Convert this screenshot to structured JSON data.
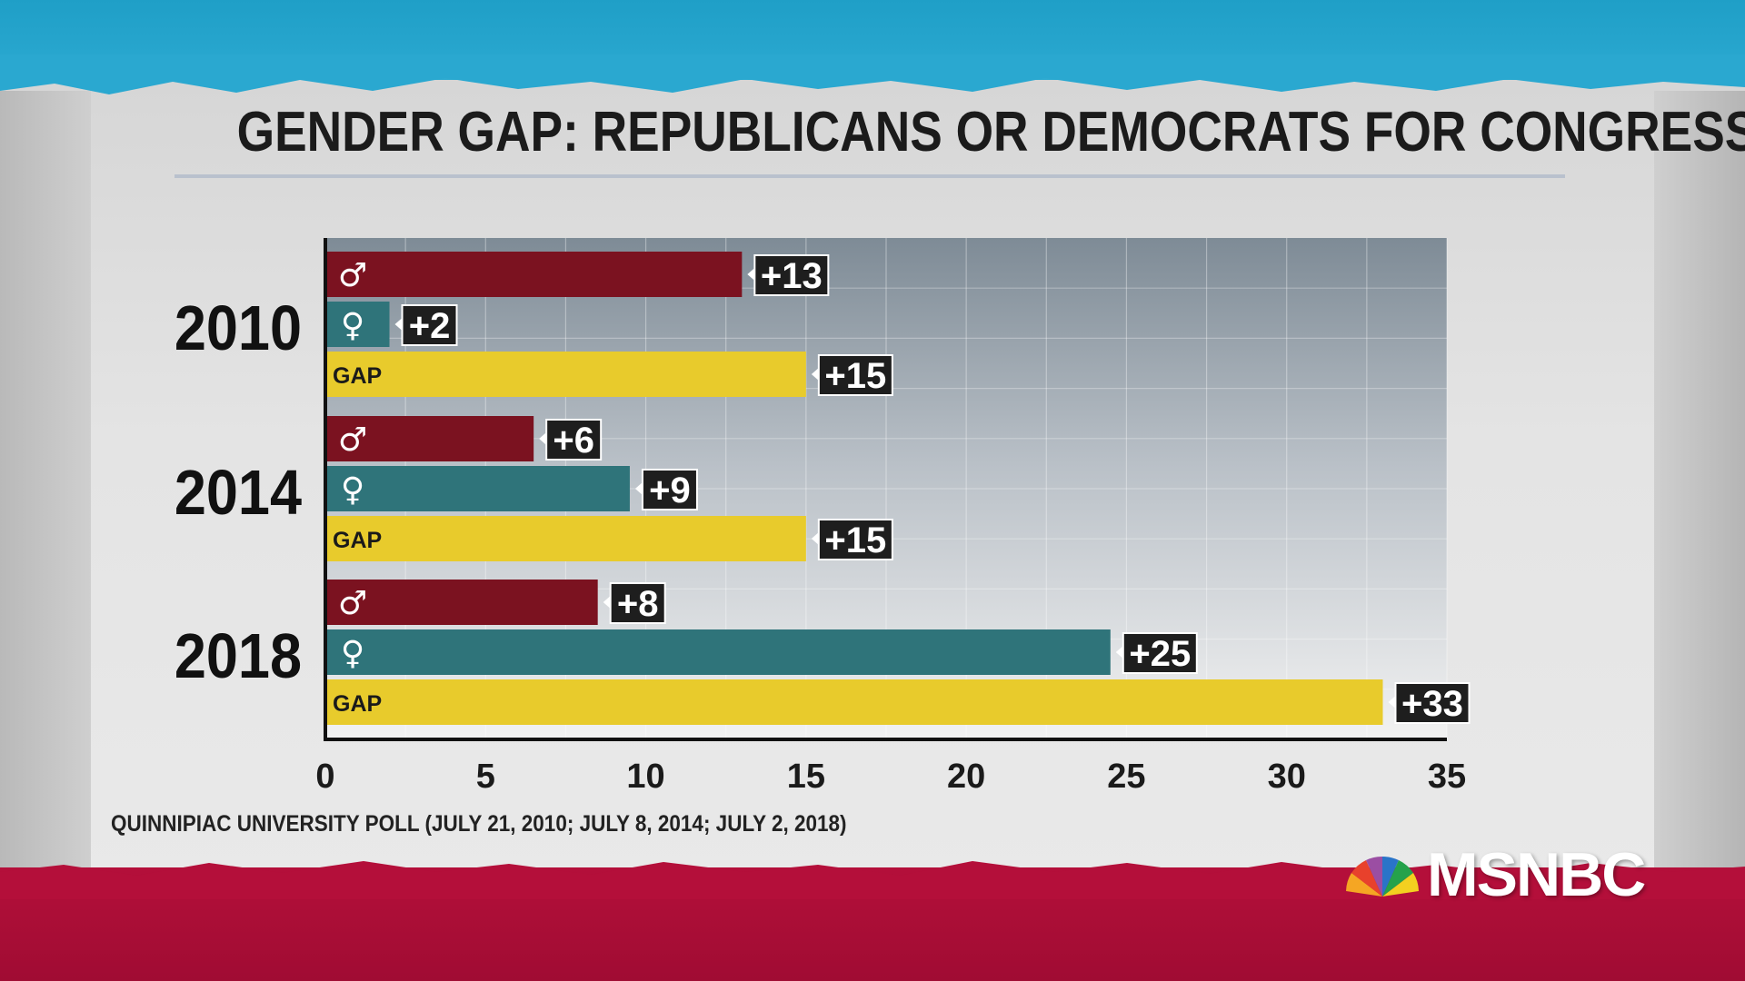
{
  "title": "GENDER GAP: REPUBLICANS OR DEMOCRATS FOR CONGRESS?",
  "source": "QUINNIPIAC UNIVERSITY POLL (JULY 21, 2010; JULY 8, 2014; JULY 2, 2018)",
  "logo_text": "MSNBC",
  "colors": {
    "men": "#7b1220",
    "women": "#2f747a",
    "gap": "#e8cb2c",
    "label_box": "#1e1e1e"
  },
  "chart_data": {
    "type": "bar",
    "orientation": "horizontal",
    "title": "GENDER GAP: REPUBLICANS OR DEMOCRATS FOR CONGRESS?",
    "xlim": [
      0,
      35
    ],
    "x_ticks": [
      "0",
      "5",
      "10",
      "15",
      "20",
      "25",
      "30",
      "35"
    ],
    "grid": true,
    "groups": [
      {
        "year": "2010",
        "bars": [
          {
            "icon": "male-symbol-icon",
            "glyph": "♂",
            "value": 13,
            "label": "+13",
            "kind": "men"
          },
          {
            "icon": "female-symbol-icon",
            "glyph": "♀",
            "value": 2,
            "label": "+2",
            "kind": "women"
          },
          {
            "text": "GAP",
            "value": 15,
            "label": "+15",
            "kind": "gap"
          }
        ]
      },
      {
        "year": "2014",
        "bars": [
          {
            "icon": "male-symbol-icon",
            "glyph": "♂",
            "value": 6.5,
            "label": "+6",
            "kind": "men"
          },
          {
            "icon": "female-symbol-icon",
            "glyph": "♀",
            "value": 9.5,
            "label": "+9",
            "kind": "women"
          },
          {
            "text": "GAP",
            "value": 15,
            "label": "+15",
            "kind": "gap"
          }
        ]
      },
      {
        "year": "2018",
        "bars": [
          {
            "icon": "male-symbol-icon",
            "glyph": "♂",
            "value": 8.5,
            "label": "+8",
            "kind": "men"
          },
          {
            "icon": "female-symbol-icon",
            "glyph": "♀",
            "value": 24.5,
            "label": "+25",
            "kind": "women"
          },
          {
            "text": "GAP",
            "value": 33,
            "label": "+33",
            "kind": "gap"
          }
        ]
      }
    ]
  }
}
